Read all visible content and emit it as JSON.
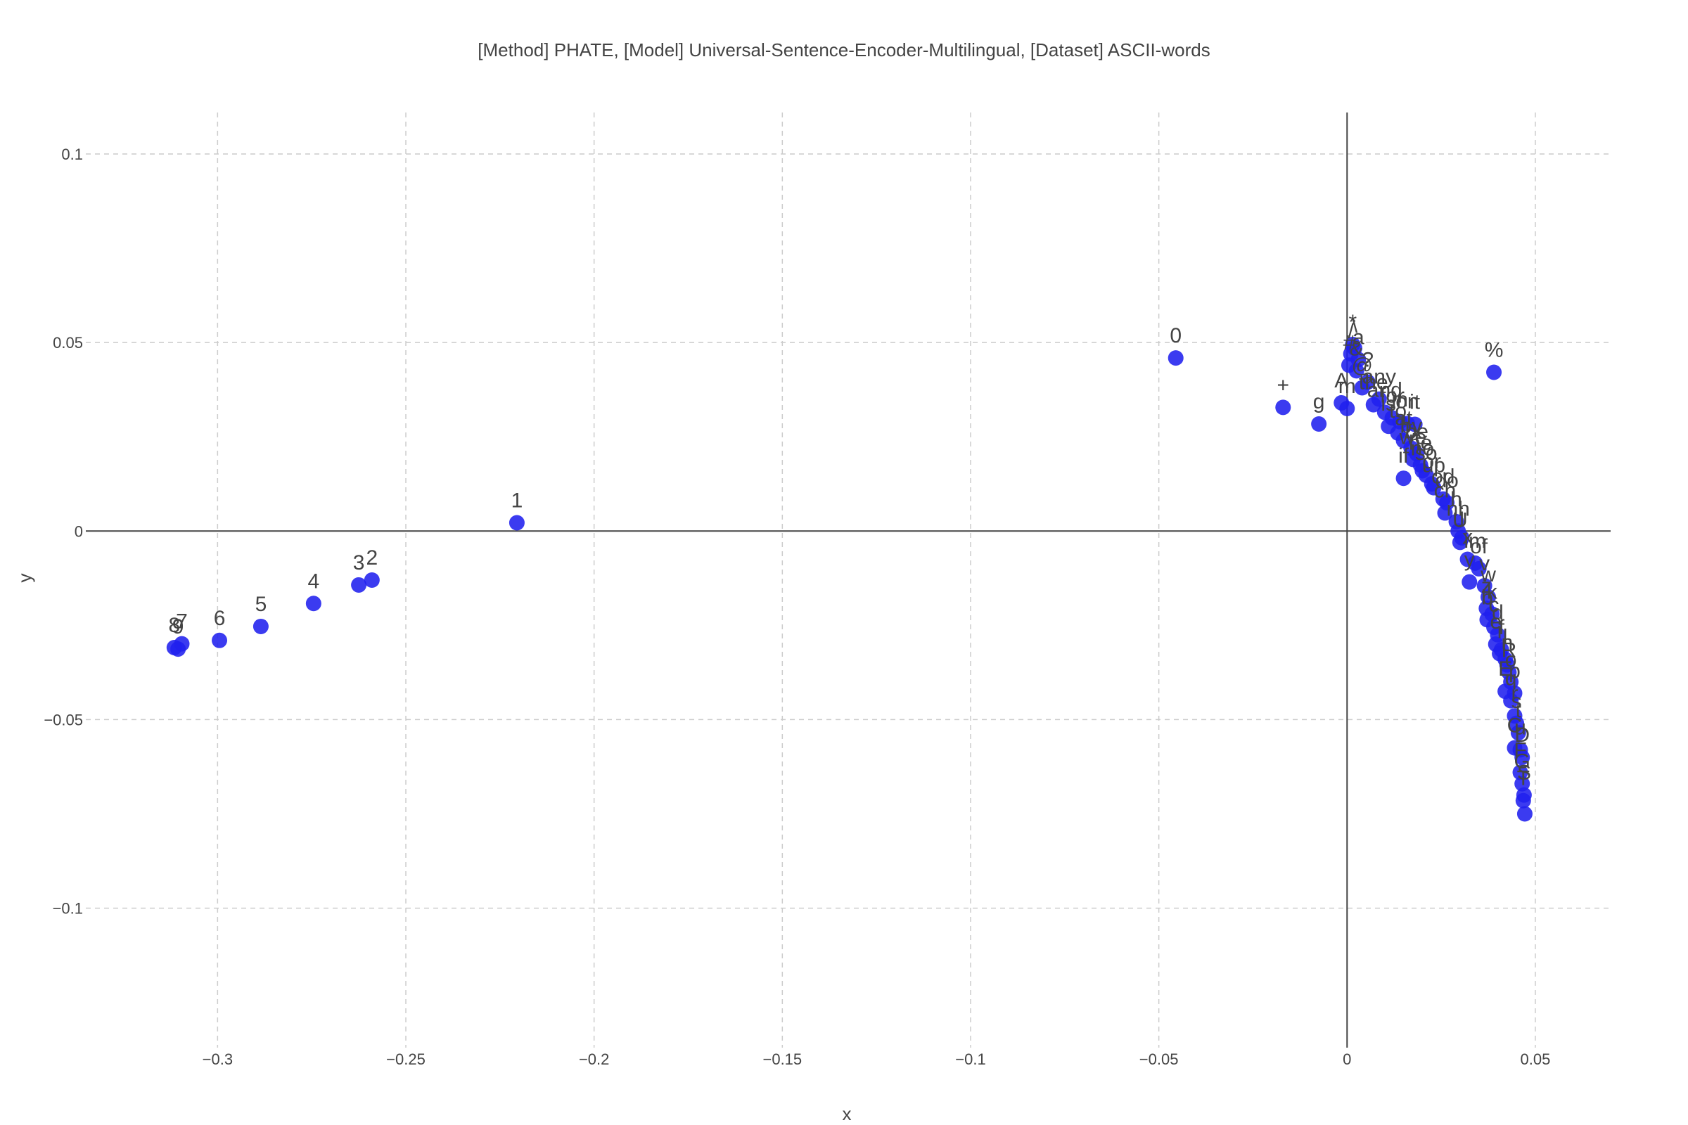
{
  "chart_data": {
    "type": "scatter",
    "title": "[Method] PHATE, [Model] Universal-Sentence-Encoder-Multilingual, [Dataset] ASCII-words",
    "xlabel": "x",
    "ylabel": "y",
    "xlim": [
      -0.335,
      0.07
    ],
    "ylim": [
      -0.137,
      0.111
    ],
    "x_ticks": [
      -0.3,
      -0.25,
      -0.2,
      -0.15,
      -0.1,
      -0.05,
      0,
      0.05
    ],
    "x_tick_labels": [
      "−0.3",
      "−0.25",
      "−0.2",
      "−0.15",
      "−0.1",
      "−0.05",
      "0",
      "0.05"
    ],
    "y_ticks": [
      0.1,
      0.05,
      0,
      -0.05,
      -0.1
    ],
    "y_tick_labels": [
      "0.1",
      "0.05",
      "0",
      "−0.05",
      "−0.1"
    ],
    "grid": true,
    "marker_color": "#2020ee",
    "points": [
      {
        "x": -0.3115,
        "y": -0.0309,
        "label": "8"
      },
      {
        "x": -0.3105,
        "y": -0.0313,
        "label": "9"
      },
      {
        "x": -0.3095,
        "y": -0.0299,
        "label": "7"
      },
      {
        "x": -0.2995,
        "y": -0.029,
        "label": "6"
      },
      {
        "x": -0.2885,
        "y": -0.0253,
        "label": "5"
      },
      {
        "x": -0.2745,
        "y": -0.0192,
        "label": "4"
      },
      {
        "x": -0.2625,
        "y": -0.0143,
        "label": "3"
      },
      {
        "x": -0.259,
        "y": -0.013,
        "label": "2"
      },
      {
        "x": -0.2205,
        "y": 0.0022,
        "label": "1"
      },
      {
        "x": -0.0455,
        "y": 0.0459,
        "label": "0"
      },
      {
        "x": -0.017,
        "y": 0.0328,
        "label": "+"
      },
      {
        "x": -0.0075,
        "y": 0.0284,
        "label": "g"
      },
      {
        "x": 0.039,
        "y": 0.0421,
        "label": "%"
      },
      {
        "x": 0.0015,
        "y": 0.0495,
        "label": "*"
      },
      {
        "x": 0.002,
        "y": 0.0485,
        "label": "\\"
      },
      {
        "x": 0.001,
        "y": 0.047,
        "label": "/"
      },
      {
        "x": 0.003,
        "y": 0.0455,
        "label": "a"
      },
      {
        "x": 0.0005,
        "y": 0.044,
        "label": "#"
      },
      {
        "x": 0.0025,
        "y": 0.0425,
        "label": "&"
      },
      {
        "x": 0.0055,
        "y": 0.0395,
        "label": "?"
      },
      {
        "x": 0.004,
        "y": 0.038,
        "label": "@"
      },
      {
        "x": -0.0015,
        "y": 0.034,
        "label": "A"
      },
      {
        "x": 0.0,
        "y": 0.0325,
        "label": "m"
      },
      {
        "x": 0.0085,
        "y": 0.035,
        "label": "any"
      },
      {
        "x": 0.007,
        "y": 0.0335,
        "label": "the"
      },
      {
        "x": 0.01,
        "y": 0.0315,
        "label": "and"
      },
      {
        "x": 0.012,
        "y": 0.03,
        "label": "for"
      },
      {
        "x": 0.014,
        "y": 0.029,
        "label": "in"
      },
      {
        "x": 0.016,
        "y": 0.0285,
        "label": "on"
      },
      {
        "x": 0.018,
        "y": 0.0283,
        "label": "it"
      },
      {
        "x": 0.011,
        "y": 0.0278,
        "label": "is"
      },
      {
        "x": 0.0135,
        "y": 0.026,
        "label": "to"
      },
      {
        "x": 0.015,
        "y": 0.024,
        "label": "at"
      },
      {
        "x": 0.017,
        "y": 0.022,
        "label": "by"
      },
      {
        "x": 0.0185,
        "y": 0.0205,
        "label": "be"
      },
      {
        "x": 0.0175,
        "y": 0.019,
        "label": "we"
      },
      {
        "x": 0.0195,
        "y": 0.0175,
        "label": "he"
      },
      {
        "x": 0.02,
        "y": 0.016,
        "label": "no"
      },
      {
        "x": 0.021,
        "y": 0.0148,
        "label": "so"
      },
      {
        "x": 0.015,
        "y": 0.014,
        "label": "if"
      },
      {
        "x": 0.0225,
        "y": 0.0125,
        "label": "or"
      },
      {
        "x": 0.023,
        "y": 0.0115,
        "label": "up"
      },
      {
        "x": 0.0255,
        "y": 0.0085,
        "label": "od"
      },
      {
        "x": 0.0265,
        "y": 0.0075,
        "label": "do"
      },
      {
        "x": 0.026,
        "y": 0.0048,
        "label": "ch"
      },
      {
        "x": 0.029,
        "y": 0.0025,
        "label": "h"
      },
      {
        "x": 0.0295,
        "y": 0.0,
        "label": "nh"
      },
      {
        "x": 0.0305,
        "y": -0.0018,
        "label": "j"
      },
      {
        "x": 0.03,
        "y": -0.003,
        "label": "U"
      },
      {
        "x": 0.032,
        "y": -0.0075,
        "label": "x"
      },
      {
        "x": 0.034,
        "y": -0.0085,
        "label": "im"
      },
      {
        "x": 0.035,
        "y": -0.01,
        "label": "of"
      },
      {
        "x": 0.0325,
        "y": -0.0135,
        "label": "y"
      },
      {
        "x": 0.0365,
        "y": -0.0145,
        "label": "v"
      },
      {
        "x": 0.0375,
        "y": -0.0175,
        "label": "w"
      },
      {
        "x": 0.037,
        "y": -0.0205,
        "label": "z"
      },
      {
        "x": 0.0385,
        "y": -0.022,
        "label": "k"
      },
      {
        "x": 0.0372,
        "y": -0.0235,
        "label": "b"
      },
      {
        "x": 0.039,
        "y": -0.0255,
        "label": "c"
      },
      {
        "x": 0.04,
        "y": -0.0275,
        "label": "d"
      },
      {
        "x": 0.0395,
        "y": -0.03,
        "label": "e"
      },
      {
        "x": 0.041,
        "y": -0.0315,
        "label": "f"
      },
      {
        "x": 0.0405,
        "y": -0.0325,
        "label": "i"
      },
      {
        "x": 0.042,
        "y": -0.034,
        "label": "l"
      },
      {
        "x": 0.0425,
        "y": -0.0355,
        "label": "n"
      },
      {
        "x": 0.043,
        "y": -0.0375,
        "label": "R"
      },
      {
        "x": 0.0435,
        "y": -0.04,
        "label": "o"
      },
      {
        "x": 0.042,
        "y": -0.0425,
        "label": "E"
      },
      {
        "x": 0.0445,
        "y": -0.043,
        "label": "p"
      },
      {
        "x": 0.0435,
        "y": -0.045,
        "label": "q"
      },
      {
        "x": 0.0445,
        "y": -0.049,
        "label": "r"
      },
      {
        "x": 0.045,
        "y": -0.051,
        "label": "s"
      },
      {
        "x": 0.0455,
        "y": -0.0535,
        "label": "t"
      },
      {
        "x": 0.0445,
        "y": -0.0575,
        "label": "C"
      },
      {
        "x": 0.046,
        "y": -0.058,
        "label": "u"
      },
      {
        "x": 0.0465,
        "y": -0.06,
        "label": "D"
      },
      {
        "x": 0.046,
        "y": -0.064,
        "label": "F"
      },
      {
        "x": 0.0465,
        "y": -0.067,
        "label": "G"
      },
      {
        "x": 0.047,
        "y": -0.07,
        "label": "S"
      },
      {
        "x": 0.0468,
        "y": -0.0715,
        "label": "T"
      },
      {
        "x": 0.0472,
        "y": -0.075,
        "label": ""
      }
    ]
  }
}
